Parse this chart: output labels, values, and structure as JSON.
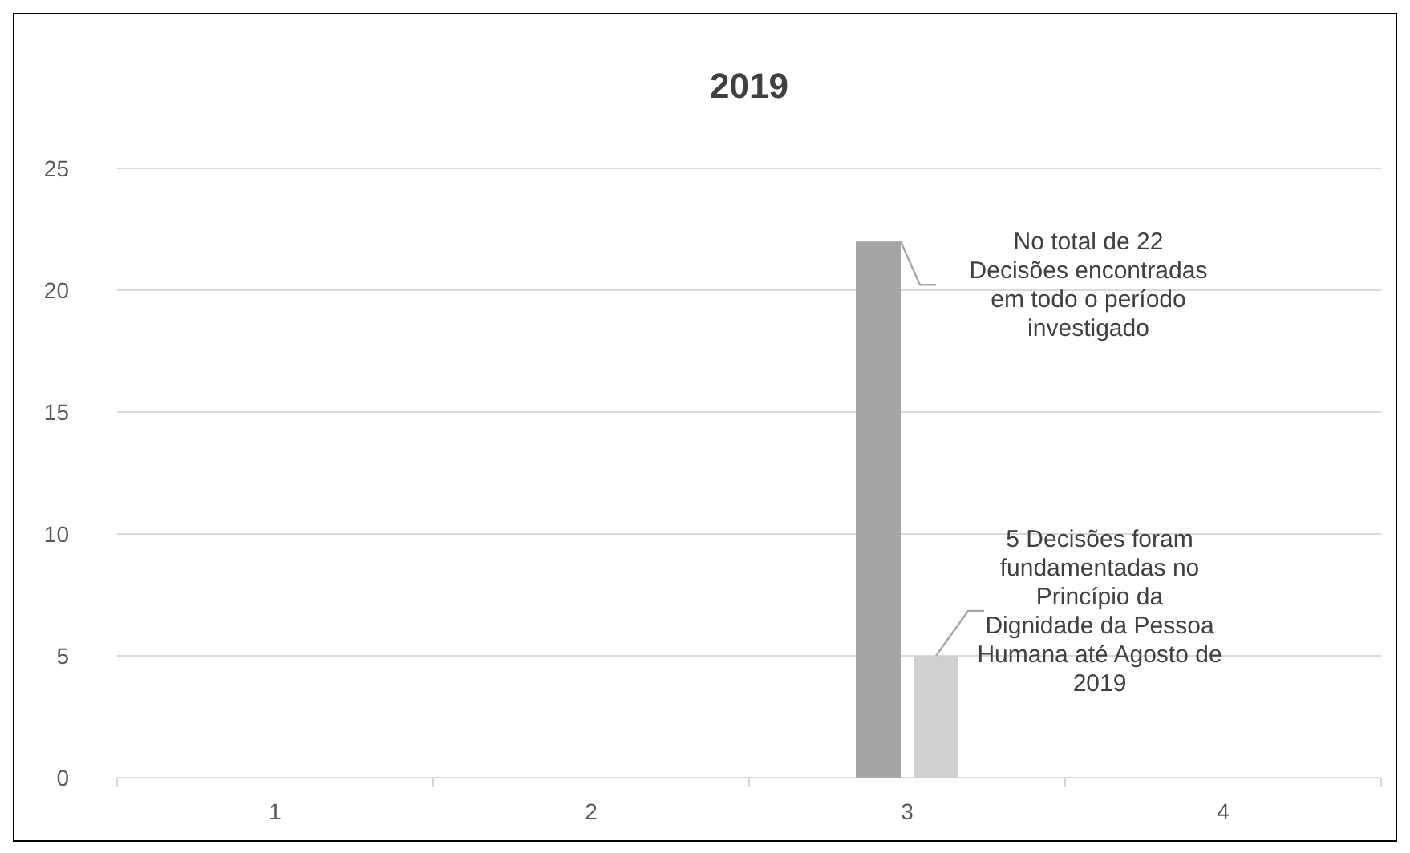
{
  "chart_data": {
    "type": "bar",
    "title": "2019",
    "categories": [
      "1",
      "2",
      "3",
      "4"
    ],
    "series": [
      {
        "color": "#a5a5a5",
        "values": [
          null,
          null,
          22,
          null
        ]
      },
      {
        "color": "#d0d0d0",
        "values": [
          null,
          null,
          5,
          null
        ]
      }
    ],
    "ylim": [
      0,
      25
    ],
    "yticks": [
      0,
      5,
      10,
      15,
      20,
      25
    ],
    "grid": "y",
    "annotations": [
      {
        "text": "No total de 22 Decisões encontradas em todo o período investigado",
        "x": "3",
        "y": 22
      },
      {
        "text": "5 Decisões foram fundamentadas no Princípio da Dignidade da Pessoa Humana até Agosto de 2019",
        "x": "3",
        "y": 5
      }
    ]
  }
}
